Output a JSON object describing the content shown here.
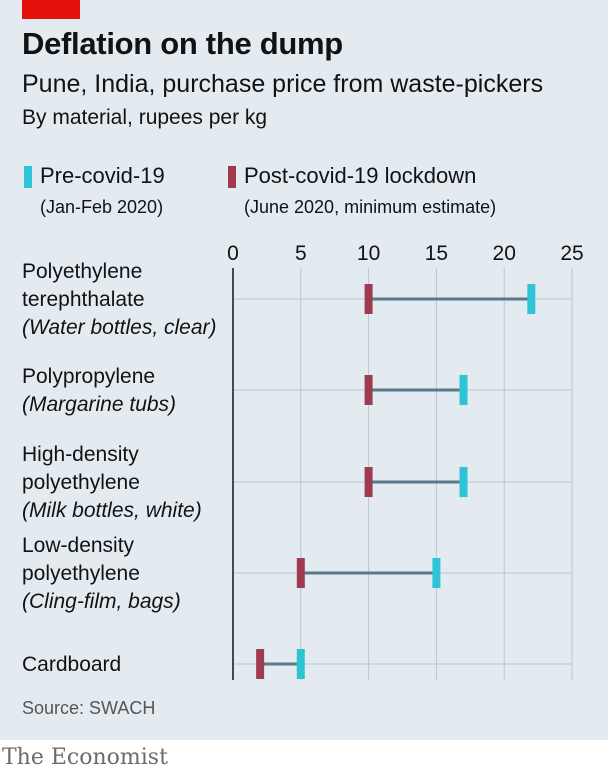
{
  "header": {
    "title": "Deflation on the dump",
    "subtitle": "Pune, India, purchase price from waste-pickers",
    "subsubtitle": "By material, rupees per kg"
  },
  "legend": {
    "pre": {
      "label": "Pre-covid-19",
      "note": "(Jan-Feb 2020)",
      "color": "#2ec4d6"
    },
    "post": {
      "label": "Post-covid-19 lockdown",
      "note": "(June 2020, minimum estimate)",
      "color": "#a03a50"
    }
  },
  "footer": {
    "source": "Source: SWACH",
    "brand": "The Economist"
  },
  "colors": {
    "background": "#e3ebf1",
    "brand_red": "#e3120b",
    "connector": "#5a7a8c",
    "gridline": "#b9c6d0"
  },
  "chart_data": {
    "type": "dumbbell",
    "xlim": [
      0,
      25
    ],
    "xticks": [
      0,
      5,
      10,
      15,
      20,
      25
    ],
    "x_axis_position": "top",
    "grid": true,
    "categories": [
      {
        "lines": [
          "Polyethylene",
          "terephthalate"
        ],
        "example": "(Water bottles, clear)",
        "pre": 22,
        "post": 10
      },
      {
        "lines": [
          "Polypropylene"
        ],
        "example": "(Margarine tubs)",
        "pre": 17,
        "post": 10
      },
      {
        "lines": [
          "High-density",
          "polyethylene"
        ],
        "example": "(Milk bottles, white)",
        "pre": 17,
        "post": 10
      },
      {
        "lines": [
          "Low-density",
          "polyethylene"
        ],
        "example": "(Cling-film, bags)",
        "pre": 15,
        "post": 5
      },
      {
        "lines": [
          "Cardboard"
        ],
        "example": "",
        "pre": 5,
        "post": 2
      }
    ],
    "series": [
      {
        "name": "Pre-covid-19",
        "values": [
          22,
          17,
          17,
          15,
          5
        ]
      },
      {
        "name": "Post-covid-19 lockdown",
        "values": [
          10,
          10,
          10,
          5,
          2
        ]
      }
    ]
  }
}
